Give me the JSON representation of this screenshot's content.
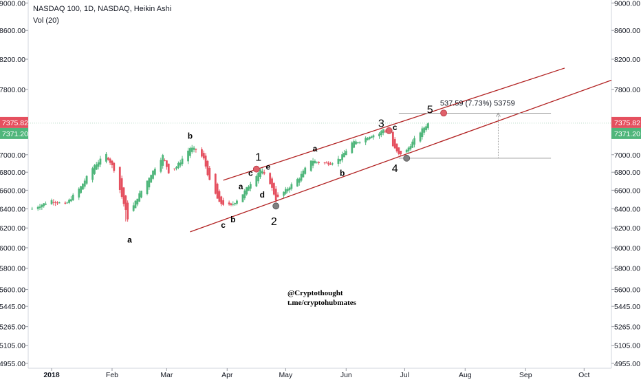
{
  "header": {
    "title": "NASDAQ 100, 1D, NASDAQ, Heikin Ashi",
    "indicator": "Vol (20)"
  },
  "watermark": {
    "line1": "@Cryptothought",
    "line2": "t.me/cryptohubmates"
  },
  "colors": {
    "up": "#4fb67b",
    "down": "#e5505f",
    "channel": "#b22222",
    "pivot_red": "#e0606a",
    "pivot_grey": "#7f7f7f",
    "badge_red": "#e5505f",
    "badge_green": "#4fb67b"
  },
  "chart_data": {
    "type": "candlestick",
    "style": "Heikin Ashi",
    "symbol": "NASDAQ 100",
    "interval": "1D",
    "yaxis": {
      "ticks": [
        4955,
        5105,
        5265,
        5445,
        5600,
        5800,
        6000,
        6200,
        6400,
        6600,
        6800,
        7000,
        7371.2,
        7375.82,
        7800,
        8200,
        8600,
        9000
      ],
      "tick_labels": [
        "4955.00",
        "5105.00",
        "5265.00",
        "5445.00",
        "5600.00",
        "5800.00",
        "6000.00",
        "6200.00",
        "6400.00",
        "6600.00",
        "6800.00",
        "7000.00",
        "7371.20",
        "7375.82",
        "7800.00",
        "8200.00",
        "8600.00",
        "9000.00"
      ],
      "grid": false,
      "scale": "log"
    },
    "xaxis": {
      "ticks": [
        "2018",
        "Feb",
        "Mar",
        "Apr",
        "May",
        "Jun",
        "Jul",
        "Aug",
        "Sep",
        "Oct"
      ],
      "start": "2017-12-20",
      "end": "2018-10-15"
    },
    "current_prices": {
      "last": "7375.82",
      "ha_close": "7371.20"
    },
    "anchors": [
      {
        "date": "2017-12-22",
        "close": 6400
      },
      {
        "date": "2018-01-01",
        "close": 6490
      },
      {
        "date": "2018-01-08",
        "close": 6440
      },
      {
        "date": "2018-01-16",
        "close": 6640
      },
      {
        "date": "2018-01-23",
        "close": 6880
      },
      {
        "date": "2018-01-29",
        "close": 7000
      },
      {
        "date": "2018-02-02",
        "close": 6830
      },
      {
        "date": "2018-02-06",
        "close": 6530
      },
      {
        "date": "2018-02-09",
        "close": 6300
      },
      {
        "date": "2018-02-14",
        "close": 6520
      },
      {
        "date": "2018-02-21",
        "close": 6780
      },
      {
        "date": "2018-02-27",
        "close": 6990
      },
      {
        "date": "2018-03-02",
        "close": 6800
      },
      {
        "date": "2018-03-06",
        "close": 6860
      },
      {
        "date": "2018-03-13",
        "close": 7080
      },
      {
        "date": "2018-03-16",
        "close": 7060
      },
      {
        "date": "2018-03-20",
        "close": 6950
      },
      {
        "date": "2018-03-23",
        "close": 6700
      },
      {
        "date": "2018-03-28",
        "close": 6460
      },
      {
        "date": "2018-04-03",
        "close": 6430
      },
      {
        "date": "2018-04-09",
        "close": 6560
      },
      {
        "date": "2018-04-13",
        "close": 6680
      },
      {
        "date": "2018-04-18",
        "close": 6830
      },
      {
        "date": "2018-04-23",
        "close": 6680
      },
      {
        "date": "2018-04-26",
        "close": 6500
      },
      {
        "date": "2018-05-02",
        "close": 6620
      },
      {
        "date": "2018-05-08",
        "close": 6740
      },
      {
        "date": "2018-05-14",
        "close": 6940
      },
      {
        "date": "2018-05-18",
        "close": 6910
      },
      {
        "date": "2018-05-24",
        "close": 6900
      },
      {
        "date": "2018-05-29",
        "close": 6960
      },
      {
        "date": "2018-06-04",
        "close": 7140
      },
      {
        "date": "2018-06-08",
        "close": 7160
      },
      {
        "date": "2018-06-13",
        "close": 7220
      },
      {
        "date": "2018-06-18",
        "close": 7250
      },
      {
        "date": "2018-06-20",
        "close": 7300
      },
      {
        "date": "2018-06-22",
        "close": 7260
      },
      {
        "date": "2018-06-25",
        "close": 7100
      },
      {
        "date": "2018-06-28",
        "close": 7000
      },
      {
        "date": "2018-07-02",
        "close": 7050
      },
      {
        "date": "2018-07-06",
        "close": 7180
      },
      {
        "date": "2018-07-10",
        "close": 7300
      },
      {
        "date": "2018-07-13",
        "close": 7371
      }
    ],
    "wave_labels": [
      {
        "text": "a",
        "date": "2018-02-10",
        "price": 6050,
        "size": "small"
      },
      {
        "text": "b",
        "date": "2018-03-13",
        "price": 7190,
        "size": "small"
      },
      {
        "text": "c",
        "date": "2018-03-30",
        "price": 6200,
        "size": "small"
      },
      {
        "text": "b",
        "date": "2018-04-04",
        "price": 6260,
        "size": "small"
      },
      {
        "text": "a",
        "date": "2018-04-08",
        "price": 6610,
        "size": "small"
      },
      {
        "text": "c",
        "date": "2018-04-13",
        "price": 6760,
        "size": "small"
      },
      {
        "text": "d",
        "date": "2018-04-19",
        "price": 6520,
        "size": "small"
      },
      {
        "text": "e",
        "date": "2018-04-22",
        "price": 6830,
        "size": "small"
      },
      {
        "text": "a",
        "date": "2018-05-16",
        "price": 7040,
        "size": "small"
      },
      {
        "text": "b",
        "date": "2018-05-30",
        "price": 6760,
        "size": "small"
      },
      {
        "text": "c",
        "date": "2018-06-26",
        "price": 7290,
        "size": "small"
      },
      {
        "text": "1",
        "date": "2018-04-17",
        "price": 6930,
        "size": "big"
      },
      {
        "text": "2",
        "date": "2018-04-25",
        "price": 6230,
        "size": "big"
      },
      {
        "text": "3",
        "date": "2018-06-19",
        "price": 7330,
        "size": "big"
      },
      {
        "text": "4",
        "date": "2018-06-26",
        "price": 6800,
        "size": "big"
      },
      {
        "text": "5",
        "date": "2018-07-14",
        "price": 7500,
        "size": "big"
      }
    ],
    "pivots": [
      {
        "name": "wave-1",
        "date": "2018-04-16",
        "price": 6835,
        "color": "red"
      },
      {
        "name": "wave-2",
        "date": "2018-04-26",
        "price": 6430,
        "color": "grey"
      },
      {
        "name": "wave-3",
        "date": "2018-06-23",
        "price": 7285,
        "color": "red"
      },
      {
        "name": "wave-4",
        "date": "2018-07-02",
        "price": 6960,
        "color": "grey"
      },
      {
        "name": "wave-5",
        "date": "2018-07-21",
        "price": 7500,
        "color": "red"
      }
    ],
    "channel_lines": [
      {
        "name": "upper-channel",
        "from": {
          "date": "2018-03-30",
          "price": 6710
        },
        "to": {
          "date": "2018-09-21",
          "price": 8080
        }
      },
      {
        "name": "lower-channel",
        "from": {
          "date": "2018-03-13",
          "price": 6160
        },
        "to": {
          "date": "2018-10-15",
          "price": 7920
        }
      }
    ],
    "measurement": {
      "label": "537.59 (7.73%) 53759",
      "low": 6960,
      "high": 7498,
      "from_date": "2018-06-28",
      "to_date": "2018-09-14"
    }
  }
}
